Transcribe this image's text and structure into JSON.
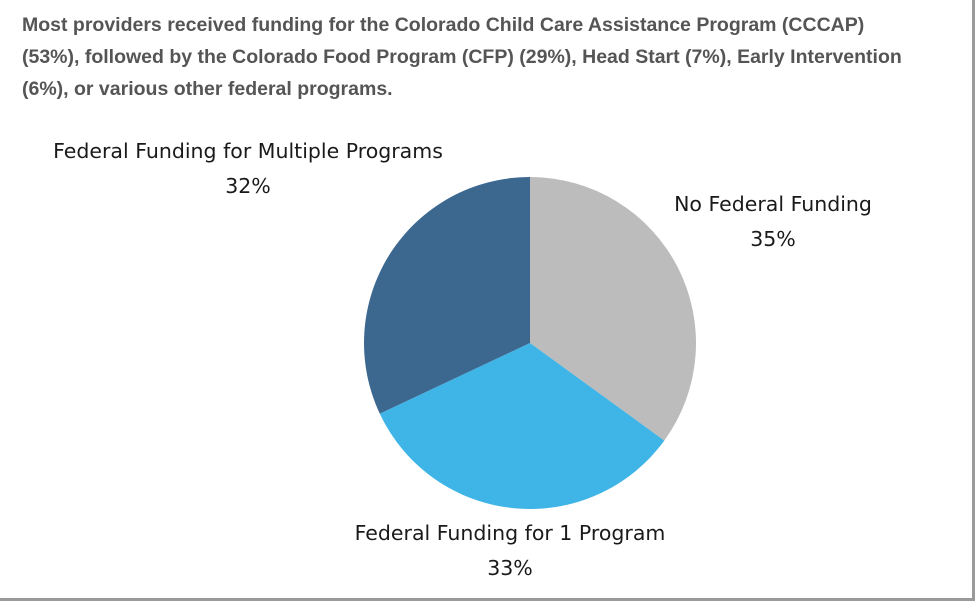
{
  "heading": "Most providers received funding for the Colorado Child Care Assistance Program (CCCAP) (53%), followed by the Colorado Food Program (CFP) (29%), Head Start (7%), Early Intervention (6%), or various other federal programs.",
  "chart_data": {
    "type": "pie",
    "title": "",
    "slices": [
      {
        "name": "No Federal Funding",
        "value": 35,
        "label": "35%",
        "color": "#bcbcbc"
      },
      {
        "name": "Federal Funding for 1 Program",
        "value": 33,
        "label": "33%",
        "color": "#3fb4e6"
      },
      {
        "name": "Federal Funding for Multiple Programs",
        "value": 32,
        "label": "32%",
        "color": "#3c6890"
      }
    ],
    "start_angle_deg": 0,
    "direction": "clockwise",
    "legend": "none"
  }
}
